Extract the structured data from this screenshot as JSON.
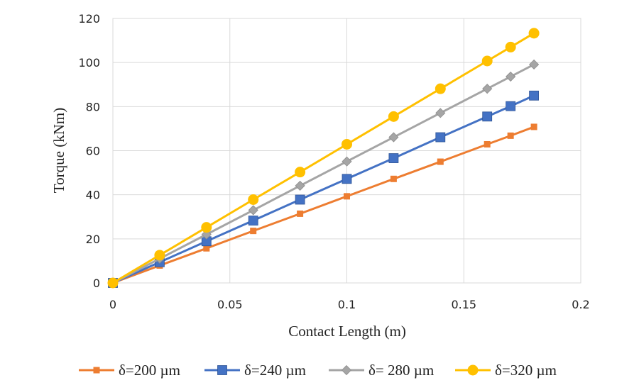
{
  "chart_data": {
    "type": "line",
    "title": "",
    "xlabel": "Contact Length (m)",
    "ylabel": "Torque (kNm)",
    "xlim": [
      0,
      0.2
    ],
    "ylim": [
      0,
      120
    ],
    "x_ticks": [
      0,
      0.05,
      0.1,
      0.15,
      0.2
    ],
    "x_tick_labels": [
      "0",
      "0.05",
      "0.1",
      "0.15",
      "0.2"
    ],
    "y_ticks": [
      0,
      20,
      40,
      60,
      80,
      100,
      120
    ],
    "y_tick_labels": [
      "0",
      "20",
      "40",
      "60",
      "80",
      "100",
      "120"
    ],
    "grid": true,
    "legend_position": "bottom",
    "x": [
      0,
      0.02,
      0.04,
      0.06,
      0.08,
      0.1,
      0.12,
      0.14,
      0.16,
      0.17,
      0.18
    ],
    "series": [
      {
        "name": "δ=200 µm",
        "color": "#ED7D31",
        "marker": "square-small",
        "values": [
          0,
          7.9,
          15.7,
          23.6,
          31.4,
          39.3,
          47.2,
          55.0,
          62.9,
          66.8,
          70.8
        ]
      },
      {
        "name": "δ=240 µm",
        "color": "#4472C4",
        "marker": "square",
        "values": [
          0,
          9.4,
          18.9,
          28.3,
          37.8,
          47.2,
          56.6,
          66.1,
          75.5,
          80.2,
          85.0
        ]
      },
      {
        "name": "δ= 280 µm",
        "color": "#A5A5A5",
        "marker": "diamond",
        "values": [
          0,
          11.0,
          22.0,
          33.0,
          44.1,
          55.1,
          66.1,
          77.1,
          88.1,
          93.6,
          99.1
        ]
      },
      {
        "name": "δ=320 µm",
        "color": "#FFC000",
        "marker": "circle",
        "values": [
          0,
          12.6,
          25.2,
          37.8,
          50.3,
          62.9,
          75.5,
          88.1,
          100.7,
          107.0,
          113.3
        ]
      }
    ]
  }
}
